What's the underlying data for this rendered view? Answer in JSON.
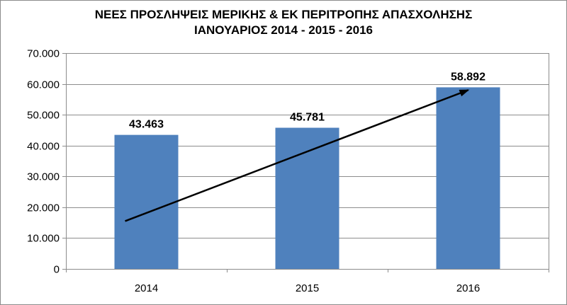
{
  "chart_data": {
    "type": "bar",
    "title": "ΝΕΕΣ ΠΡΟΣΛΗΨΕΙΣ ΜΕΡΙΚΗΣ & ΕΚ ΠΕΡΙΤΡΟΠΗΣ ΑΠΑΣΧΟΛΗΣΗΣ",
    "subtitle": "ΙΑΝΟΥΑΡΙΟΣ 2014  - 2015   - 2016",
    "categories": [
      "2014",
      "2015",
      "2016"
    ],
    "values": [
      43463,
      45781,
      58892
    ],
    "value_labels": [
      "43.463",
      "45.781",
      "58.892"
    ],
    "ylim": [
      0,
      70000
    ],
    "yticks": [
      0,
      10000,
      20000,
      30000,
      40000,
      50000,
      60000,
      70000
    ],
    "ytick_labels": [
      "0",
      "10.000",
      "20.000",
      "30.000",
      "40.000",
      "50.000",
      "60.000",
      "70.000"
    ],
    "grid": true,
    "bar_color": "#4f81bd",
    "trend_arrow": {
      "from": [
        "2014",
        15500
      ],
      "to": [
        "2016",
        58000
      ]
    }
  }
}
